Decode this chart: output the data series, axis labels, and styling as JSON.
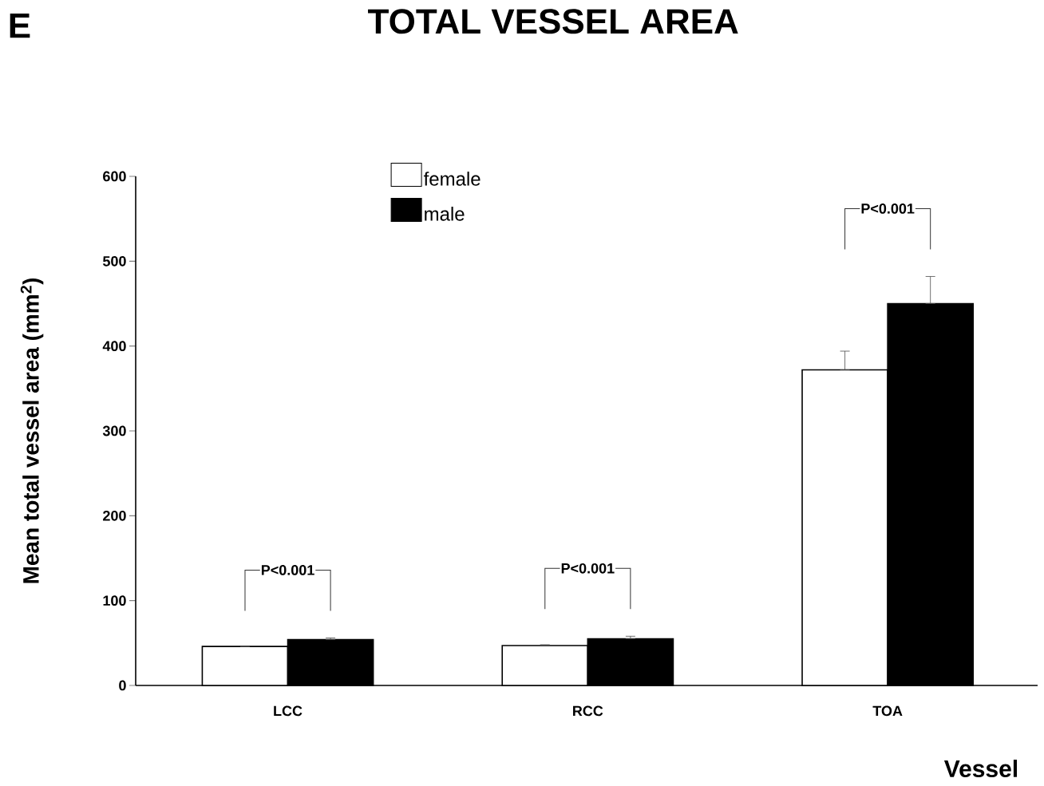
{
  "chart_data": {
    "type": "bar",
    "title": "TOTAL VESSEL AREA",
    "xlabel": "Vessel",
    "ylabel": "Mean total vessel area (mm$^{2}$)",
    "categories": [
      "LCC",
      "RCC",
      "TOA"
    ],
    "series": [
      {
        "name": "female",
        "color": "#ffffff",
        "values": [
          46,
          47,
          372
        ],
        "errors": [
          [
            46,
            46
          ],
          [
            47,
            48
          ],
          [
            372,
            394
          ]
        ]
      },
      {
        "name": "male",
        "color": "#000000",
        "values": [
          54,
          55,
          450
        ],
        "errors": [
          [
            54,
            56
          ],
          [
            55,
            58
          ],
          [
            450,
            482
          ]
        ]
      }
    ],
    "ylim": [
      0,
      600
    ],
    "yticks": [
      0,
      100,
      200,
      300,
      400,
      500,
      600
    ],
    "grid": false,
    "legend": "top left",
    "annotations": [
      "E",
      "P<0.001",
      "P<0.001",
      "P<0.001"
    ]
  }
}
